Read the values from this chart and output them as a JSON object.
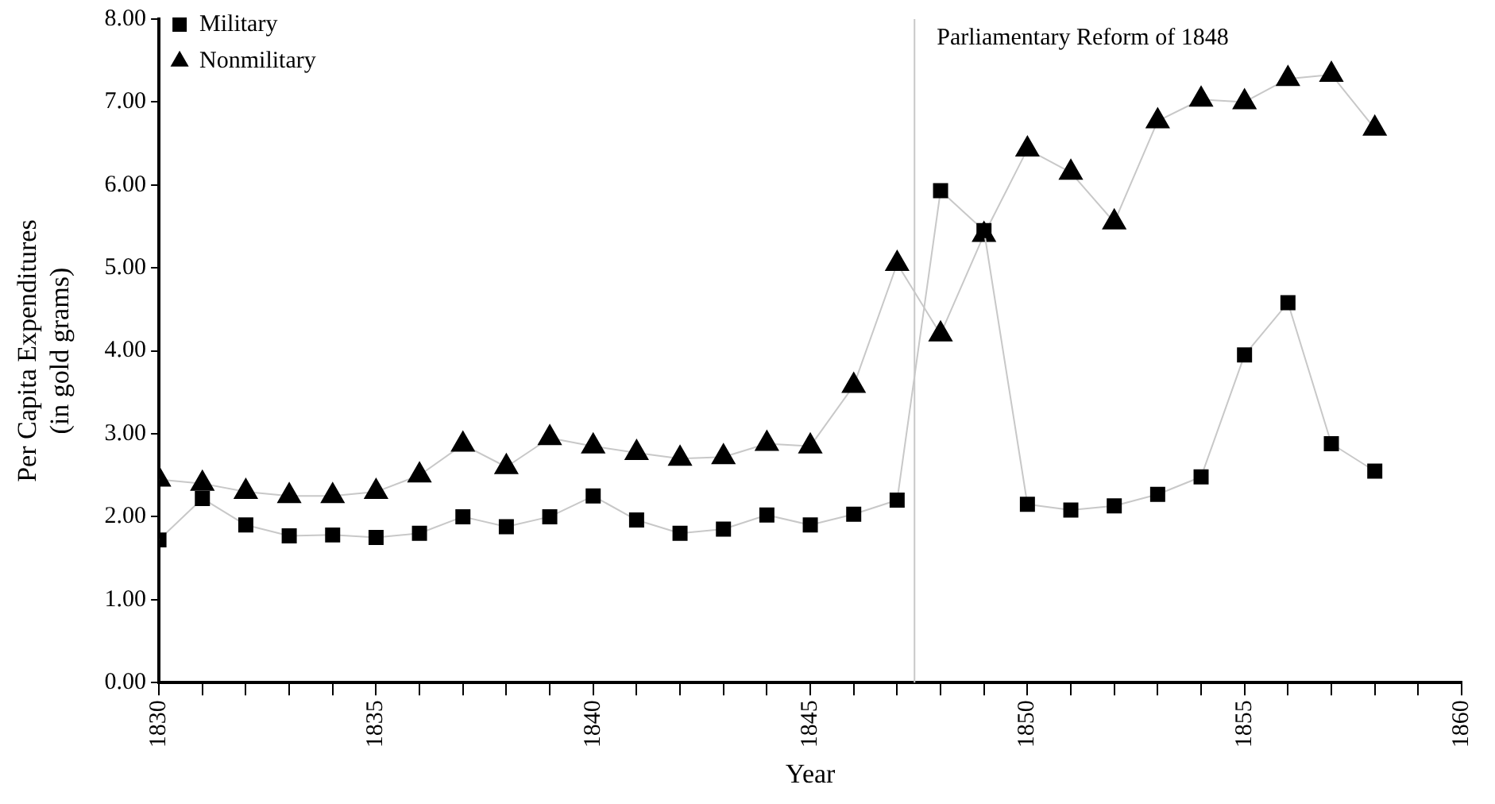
{
  "chart_data": {
    "type": "line",
    "xlabel": "Year",
    "ylabel": "Per Capita Expenditures\n(in gold grams)",
    "x": [
      1830,
      1831,
      1832,
      1833,
      1834,
      1835,
      1836,
      1837,
      1838,
      1839,
      1840,
      1841,
      1842,
      1843,
      1844,
      1845,
      1846,
      1847,
      1848,
      1849,
      1850,
      1851,
      1852,
      1853,
      1854,
      1855,
      1856,
      1857,
      1858
    ],
    "series": [
      {
        "name": "Military",
        "color": "#000000",
        "marker": "square",
        "values": [
          1.72,
          2.22,
          1.9,
          1.77,
          1.78,
          1.75,
          1.8,
          2.0,
          1.88,
          2.0,
          2.25,
          1.96,
          1.8,
          1.85,
          2.02,
          1.9,
          2.03,
          2.2,
          5.93,
          5.45,
          2.15,
          2.08,
          2.13,
          2.27,
          2.48,
          3.95,
          4.58,
          2.88,
          2.55
        ]
      },
      {
        "name": "Nonmilitary",
        "color": "#000000",
        "marker": "triangle",
        "values": [
          2.45,
          2.4,
          2.3,
          2.25,
          2.25,
          2.3,
          2.5,
          2.87,
          2.6,
          2.95,
          2.85,
          2.77,
          2.7,
          2.72,
          2.88,
          2.85,
          3.58,
          5.05,
          4.2,
          5.4,
          6.43,
          6.15,
          5.55,
          6.77,
          7.03,
          7.0,
          7.28,
          7.33,
          6.68
        ]
      }
    ],
    "xlim": [
      1830,
      1860
    ],
    "xticks": [
      1830,
      {
        "value": 1831,
        "label": null
      },
      {
        "value": 1832,
        "label": null
      },
      {
        "value": 1833,
        "label": null
      },
      {
        "value": 1834,
        "label": null
      },
      1835,
      {
        "value": 1836,
        "label": null
      },
      {
        "value": 1837,
        "label": null
      },
      {
        "value": 1838,
        "label": null
      },
      {
        "value": 1839,
        "label": null
      },
      1840,
      {
        "value": 1841,
        "label": null
      },
      {
        "value": 1842,
        "label": null
      },
      {
        "value": 1843,
        "label": null
      },
      {
        "value": 1844,
        "label": null
      },
      1845,
      {
        "value": 1846,
        "label": null
      },
      {
        "value": 1847,
        "label": null
      },
      {
        "value": 1848,
        "label": null
      },
      {
        "value": 1849,
        "label": null
      },
      1850,
      {
        "value": 1851,
        "label": null
      },
      {
        "value": 1852,
        "label": null
      },
      {
        "value": 1853,
        "label": null
      },
      {
        "value": 1854,
        "label": null
      },
      1855,
      {
        "value": 1856,
        "label": null
      },
      {
        "value": 1857,
        "label": null
      },
      {
        "value": 1858,
        "label": null
      },
      {
        "value": 1859,
        "label": null
      },
      1860
    ],
    "ylim": [
      0,
      8
    ],
    "yticks": [
      {
        "value": 0,
        "label": "0.00"
      },
      {
        "value": 1,
        "label": "1.00"
      },
      {
        "value": 2,
        "label": "2.00"
      },
      {
        "value": 3,
        "label": "3.00"
      },
      {
        "value": 4,
        "label": "4.00"
      },
      {
        "value": 5,
        "label": "5.00"
      },
      {
        "value": 6,
        "label": "6.00"
      },
      {
        "value": 7,
        "label": "7.00"
      },
      {
        "value": 8,
        "label": "8.00"
      }
    ],
    "ref_lines": [
      {
        "axis": "x",
        "value": 1847.4,
        "label": "Parliamentary Reform of 1848",
        "color": "#c8c8c8"
      }
    ],
    "grid": false,
    "legend": "top left",
    "line_style": "solid"
  }
}
